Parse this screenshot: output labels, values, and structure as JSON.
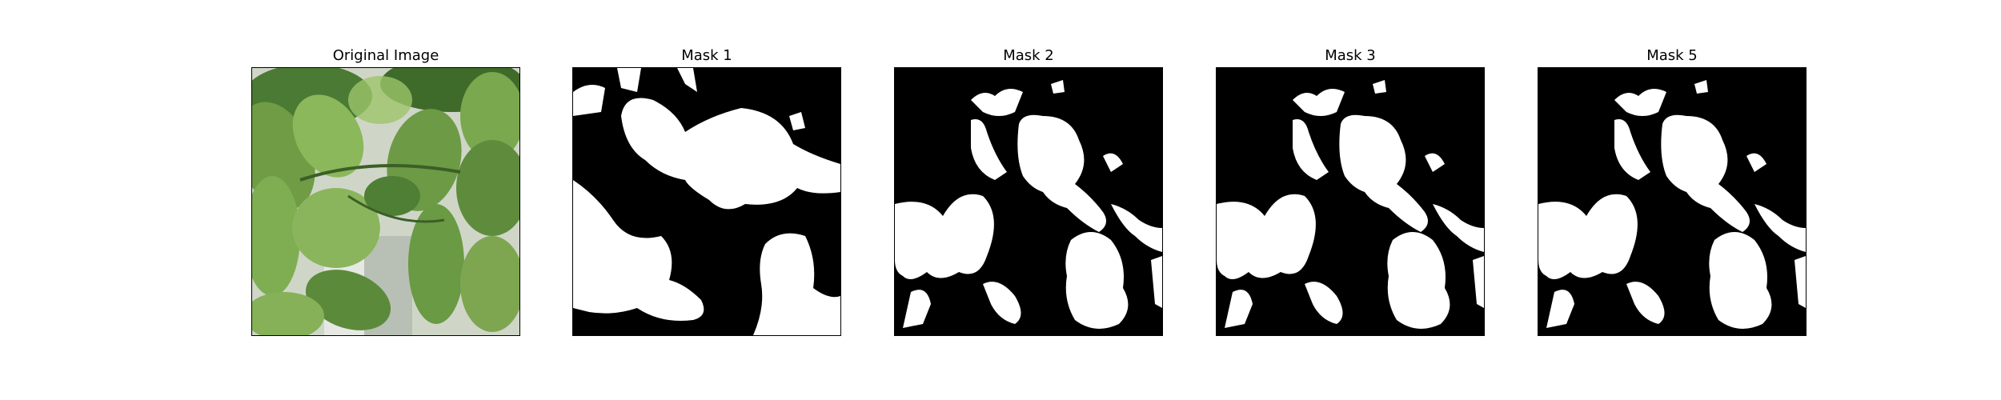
{
  "panels": [
    {
      "title": "Original Image",
      "kind": "photo",
      "depicts": "leaves-photo"
    },
    {
      "title": "Mask 1",
      "kind": "mask"
    },
    {
      "title": "Mask 2",
      "kind": "mask"
    },
    {
      "title": "Mask 3",
      "kind": "mask"
    },
    {
      "title": "Mask 5",
      "kind": "mask"
    }
  ],
  "colors": {
    "background": "#ffffff",
    "mask_foreground": "#ffffff",
    "mask_background": "#000000",
    "leaf_dark": "#3f6b2a",
    "leaf_mid": "#6f9c45",
    "leaf_light": "#9cc46a",
    "photo_bg": "#d9ddd4"
  }
}
